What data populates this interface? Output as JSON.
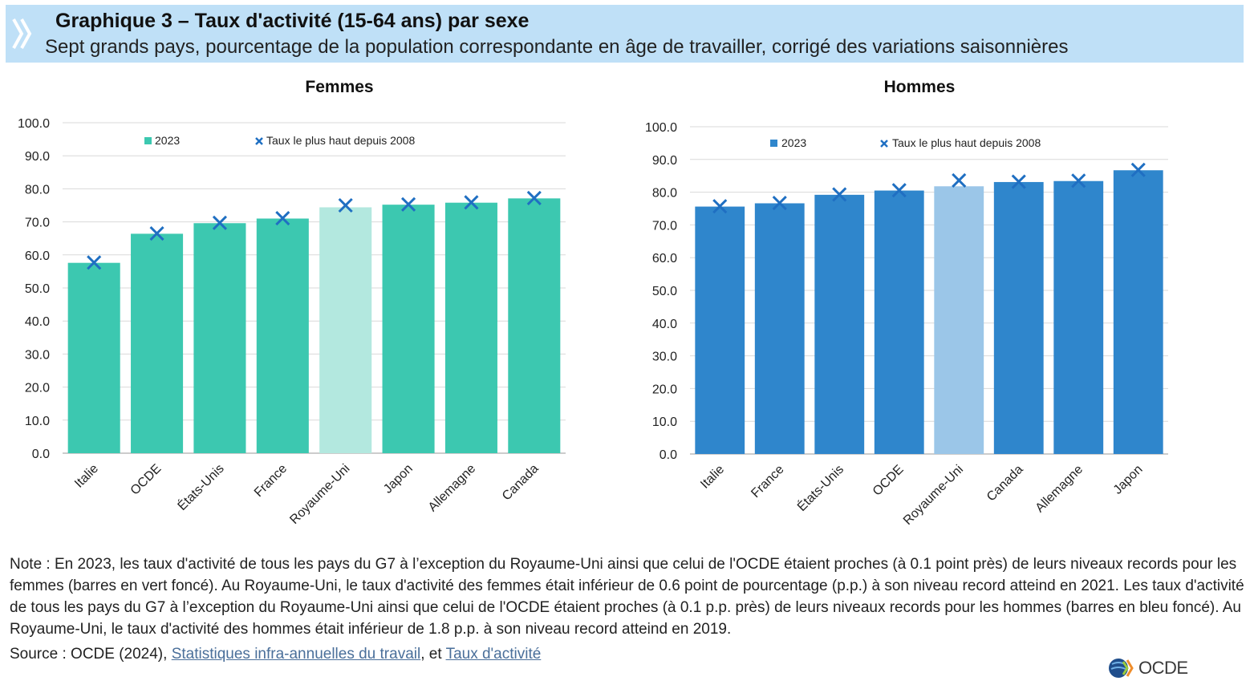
{
  "header": {
    "title": "Graphique 3 – Taux d'activité (15-64 ans) par sexe",
    "subtitle": "Sept grands pays, pourcentage de la population correspondante en âge de travailler, corrigé des variations saisonnières"
  },
  "y_ticks": [
    "0.0",
    "10.0",
    "20.0",
    "30.0",
    "40.0",
    "50.0",
    "60.0",
    "70.0",
    "80.0",
    "90.0",
    "100.0"
  ],
  "chart_data": [
    {
      "type": "bar",
      "title": "Femmes",
      "categories": [
        "Italie",
        "OCDE",
        "États-Unis",
        "France",
        "Royaume-Uni",
        "Japon",
        "Allemagne",
        "Canada"
      ],
      "series": [
        {
          "name": "2023",
          "values": [
            57.6,
            66.4,
            69.6,
            71.0,
            74.4,
            75.2,
            75.8,
            77.1
          ]
        },
        {
          "name": "Taux le plus haut depuis 2008",
          "values": [
            57.7,
            66.5,
            69.7,
            71.1,
            75.0,
            75.3,
            75.9,
            77.2
          ]
        }
      ],
      "ylim": [
        0,
        100
      ],
      "grid": true,
      "legend": "top",
      "colors": {
        "bar": "#3cc8b0",
        "highlight": "#b3e8df",
        "marker": "#1f6fc2"
      }
    },
    {
      "type": "bar",
      "title": "Hommes",
      "categories": [
        "Italie",
        "France",
        "États-Unis",
        "OCDE",
        "Royaume-Uni",
        "Canada",
        "Allemagne",
        "Japon"
      ],
      "series": [
        {
          "name": "2023",
          "values": [
            75.6,
            76.6,
            79.2,
            80.5,
            81.8,
            83.1,
            83.4,
            86.7
          ]
        },
        {
          "name": "Taux le plus haut depuis 2008",
          "values": [
            75.7,
            76.7,
            79.3,
            80.6,
            83.6,
            83.2,
            83.5,
            86.8
          ]
        }
      ],
      "ylim": [
        0,
        100
      ],
      "grid": true,
      "legend": "top",
      "colors": {
        "bar": "#2f86cc",
        "highlight": "#9bc6e8",
        "marker": "#1f6fc2"
      }
    }
  ],
  "notes": {
    "note_text": "Note : En 2023, les taux d'activité de tous les pays du G7 à l’exception du Royaume-Uni ainsi que celui de l'OCDE étaient proches (à 0.1 point près) de leurs niveaux records pour les femmes (barres en vert foncé). Au Royaume-Uni, le taux d'activité des femmes était inférieur de 0.6 point de pourcentage (p.p.) à son niveau record atteind en 2021. Les taux d'activité de tous les pays du G7 à l’exception du Royaume-Uni ainsi que celui de l'OCDE étaient proches (à 0.1 p.p. près) de leurs niveaux records pour les hommes (barres en bleu foncé). Au Royaume-Uni, le taux d'activité des hommes était inférieur de 1.8 p.p. à son niveau record atteind en 2019.",
    "source_prefix": "Source : OCDE (2024), ",
    "source_link1": "Statistiques infra-annuelles du travail",
    "source_mid": ", et ",
    "source_link2": "Taux d'activité"
  },
  "logo": {
    "text": "OCDE"
  }
}
